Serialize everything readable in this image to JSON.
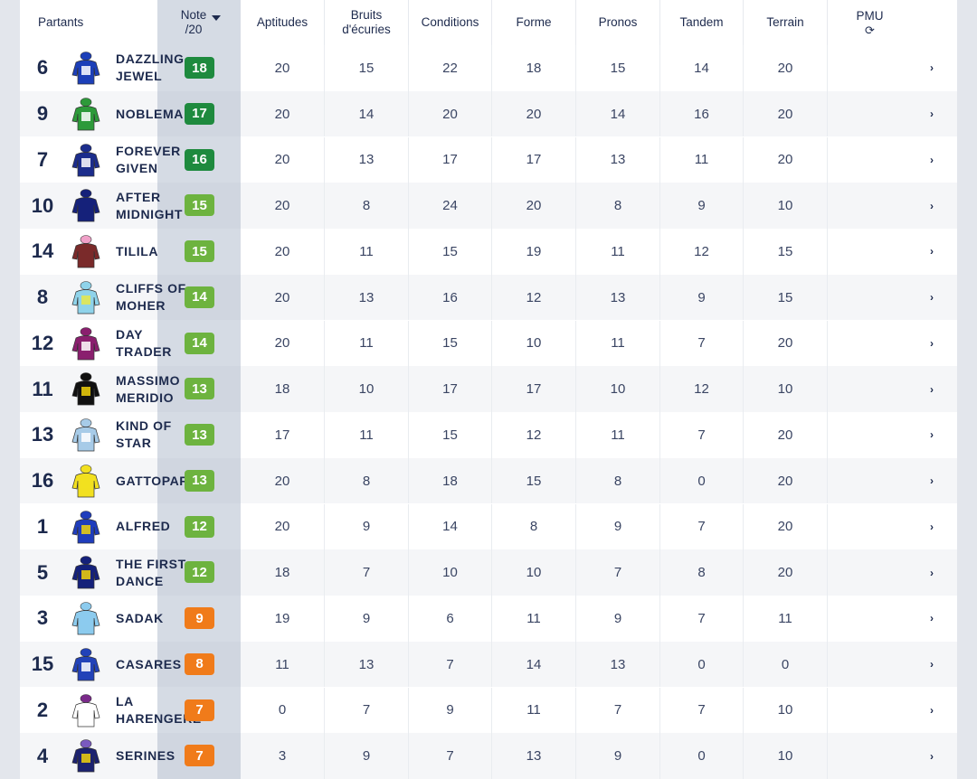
{
  "header": {
    "partants": "Partants",
    "note_line1": "Note",
    "note_line2": "/20",
    "aptitudes": "Aptitudes",
    "bruits_line1": "Bruits",
    "bruits_line2": "d'écuries",
    "conditions": "Conditions",
    "forme": "Forme",
    "pronos": "Pronos",
    "tandem": "Tandem",
    "terrain": "Terrain",
    "pmu": "PMU",
    "pmu_icon": "refresh-icon"
  },
  "colors": {
    "dark_green": "#1e8a3e",
    "light_green": "#6db33f",
    "orange": "#f07b1a"
  },
  "runners": [
    {
      "num": "6",
      "name": "DAZZLING JEWEL",
      "note": "18",
      "color": "dark_green",
      "silk": "blue-white-cap",
      "aptitudes": "20",
      "bruits": "15",
      "conditions": "22",
      "forme": "18",
      "pronos": "15",
      "tandem": "14",
      "terrain": "20"
    },
    {
      "num": "9",
      "name": "NOBLEMA",
      "note": "17",
      "color": "dark_green",
      "silk": "green-white-diamond",
      "aptitudes": "20",
      "bruits": "14",
      "conditions": "20",
      "forme": "20",
      "pronos": "14",
      "tandem": "16",
      "terrain": "20"
    },
    {
      "num": "7",
      "name": "FOREVER GIVEN",
      "note": "16",
      "color": "dark_green",
      "silk": "navy-white-hoop",
      "aptitudes": "20",
      "bruits": "13",
      "conditions": "17",
      "forme": "17",
      "pronos": "13",
      "tandem": "11",
      "terrain": "20"
    },
    {
      "num": "10",
      "name": "AFTER MIDNIGHT",
      "note": "15",
      "color": "light_green",
      "silk": "navy",
      "aptitudes": "20",
      "bruits": "8",
      "conditions": "24",
      "forme": "20",
      "pronos": "8",
      "tandem": "9",
      "terrain": "10"
    },
    {
      "num": "14",
      "name": "TILILA",
      "note": "15",
      "color": "light_green",
      "silk": "maroon-pink-cap",
      "aptitudes": "20",
      "bruits": "11",
      "conditions": "15",
      "forme": "19",
      "pronos": "11",
      "tandem": "12",
      "terrain": "15"
    },
    {
      "num": "8",
      "name": "CLIFFS OF MOHER",
      "note": "14",
      "color": "light_green",
      "silk": "lightblue-yellow",
      "aptitudes": "20",
      "bruits": "13",
      "conditions": "16",
      "forme": "12",
      "pronos": "13",
      "tandem": "9",
      "terrain": "15"
    },
    {
      "num": "12",
      "name": "DAY TRADER",
      "note": "14",
      "color": "light_green",
      "silk": "purple-white",
      "aptitudes": "20",
      "bruits": "11",
      "conditions": "15",
      "forme": "10",
      "pronos": "11",
      "tandem": "7",
      "terrain": "20"
    },
    {
      "num": "11",
      "name": "MASSIMO MERIDIO",
      "note": "13",
      "color": "light_green",
      "silk": "black-yellow",
      "aptitudes": "18",
      "bruits": "10",
      "conditions": "17",
      "forme": "17",
      "pronos": "10",
      "tandem": "12",
      "terrain": "10"
    },
    {
      "num": "13",
      "name": "KIND OF STAR",
      "note": "13",
      "color": "light_green",
      "silk": "lightblue",
      "aptitudes": "17",
      "bruits": "11",
      "conditions": "15",
      "forme": "12",
      "pronos": "11",
      "tandem": "7",
      "terrain": "20"
    },
    {
      "num": "16",
      "name": "GATTOPARDO",
      "note": "13",
      "color": "light_green",
      "silk": "yellow",
      "aptitudes": "20",
      "bruits": "8",
      "conditions": "18",
      "forme": "15",
      "pronos": "8",
      "tandem": "0",
      "terrain": "20"
    },
    {
      "num": "1",
      "name": "ALFRED",
      "note": "12",
      "color": "light_green",
      "silk": "blue-yellow-v",
      "aptitudes": "20",
      "bruits": "9",
      "conditions": "14",
      "forme": "8",
      "pronos": "9",
      "tandem": "7",
      "terrain": "20"
    },
    {
      "num": "5",
      "name": "THE FIRST DANCE",
      "note": "12",
      "color": "light_green",
      "silk": "navy-yellow-stripes",
      "aptitudes": "18",
      "bruits": "7",
      "conditions": "10",
      "forme": "10",
      "pronos": "7",
      "tandem": "8",
      "terrain": "20"
    },
    {
      "num": "3",
      "name": "SADAK",
      "note": "9",
      "color": "orange",
      "silk": "lightblue-plain",
      "aptitudes": "19",
      "bruits": "9",
      "conditions": "6",
      "forme": "11",
      "pronos": "9",
      "tandem": "7",
      "terrain": "11"
    },
    {
      "num": "15",
      "name": "CASARES",
      "note": "8",
      "color": "orange",
      "silk": "blue-white-stripes",
      "aptitudes": "11",
      "bruits": "13",
      "conditions": "7",
      "forme": "14",
      "pronos": "13",
      "tandem": "0",
      "terrain": "0"
    },
    {
      "num": "2",
      "name": "LA HARENGERE",
      "note": "7",
      "color": "orange",
      "silk": "white-purple-cap",
      "aptitudes": "0",
      "bruits": "7",
      "conditions": "9",
      "forme": "11",
      "pronos": "7",
      "tandem": "7",
      "terrain": "10"
    },
    {
      "num": "4",
      "name": "SERINES",
      "note": "7",
      "color": "orange",
      "silk": "navy-yellow-stars",
      "aptitudes": "3",
      "bruits": "9",
      "conditions": "7",
      "forme": "13",
      "pronos": "9",
      "tandem": "0",
      "terrain": "10"
    }
  ]
}
